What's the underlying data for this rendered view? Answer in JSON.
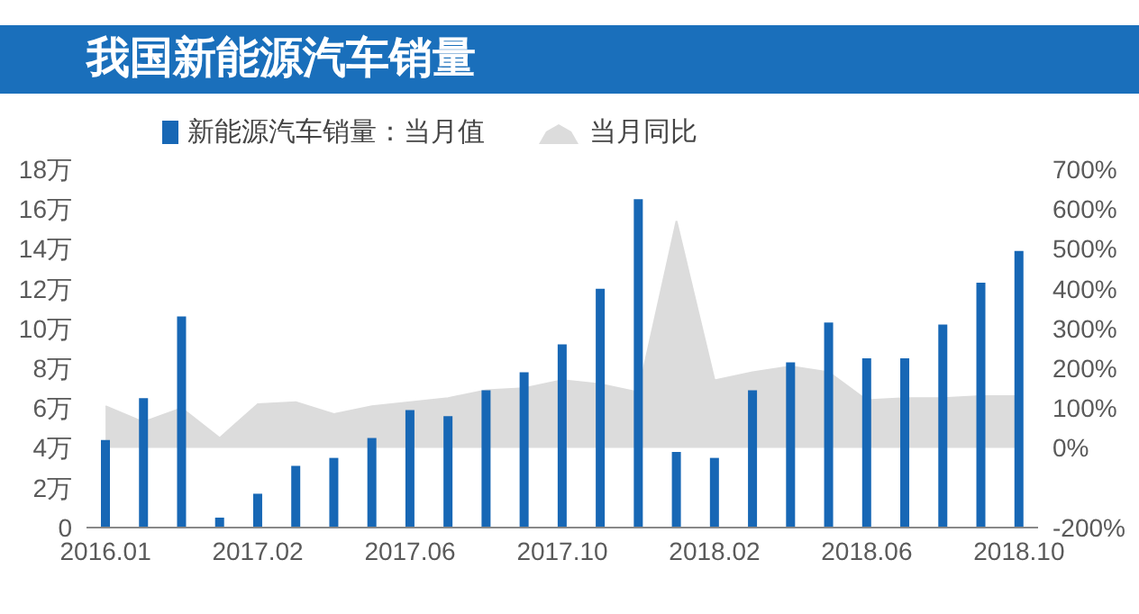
{
  "chart_data": {
    "type": "bar",
    "title": "我国新能源汽车销量",
    "legend": "top",
    "categories": [
      "2016.01",
      null,
      null,
      null,
      "2017.02",
      null,
      null,
      null,
      "2017.06",
      null,
      null,
      null,
      "2017.10",
      null,
      null,
      null,
      "2018.02",
      null,
      null,
      null,
      "2018.06",
      null,
      null,
      null,
      "2018.10"
    ],
    "series": [
      {
        "name": "新能源汽车销量：当月值",
        "color": "#1767b5",
        "values": [
          4.4,
          6.5,
          10.6,
          0.5,
          1.7,
          3.1,
          3.5,
          4.5,
          5.9,
          5.6,
          6.9,
          7.8,
          9.2,
          12,
          16.5,
          3.8,
          3.5,
          6.9,
          8.3,
          10.3,
          8.5,
          8.5,
          10.2,
          12.3,
          13.9
        ]
      },
      {
        "name": "当月同比",
        "type": "area",
        "axis": "y2",
        "color": "#dcdcdc",
        "values": [
          105,
          65,
          100,
          25,
          110,
          115,
          85,
          105,
          115,
          125,
          145,
          150,
          170,
          160,
          140,
          570,
          170,
          190,
          205,
          190,
          120,
          125,
          125,
          130,
          130
        ]
      }
    ],
    "ylim": [
      0,
      18
    ],
    "yticks": [
      {
        "value": 0,
        "label": "0"
      },
      {
        "value": 2,
        "label": "2万"
      },
      {
        "value": 4,
        "label": "4万"
      },
      {
        "value": 6,
        "label": "6万"
      },
      {
        "value": 8,
        "label": "8万"
      },
      {
        "value": 10,
        "label": "10万"
      },
      {
        "value": 12,
        "label": "12万"
      },
      {
        "value": 14,
        "label": "14万"
      },
      {
        "value": 16,
        "label": "16万"
      },
      {
        "value": 18,
        "label": "18万"
      }
    ],
    "y2lim": [
      -200,
      700
    ],
    "y2ticks": [
      {
        "value": -200,
        "label": "-200%"
      },
      {
        "value": 0,
        "label": "0%"
      },
      {
        "value": 100,
        "label": "100%"
      },
      {
        "value": 200,
        "label": "200%"
      },
      {
        "value": 300,
        "label": "300%"
      },
      {
        "value": 400,
        "label": "400%"
      },
      {
        "value": 500,
        "label": "500%"
      },
      {
        "value": 600,
        "label": "600%"
      },
      {
        "value": 700,
        "label": "700%"
      }
    ],
    "grid": false
  }
}
